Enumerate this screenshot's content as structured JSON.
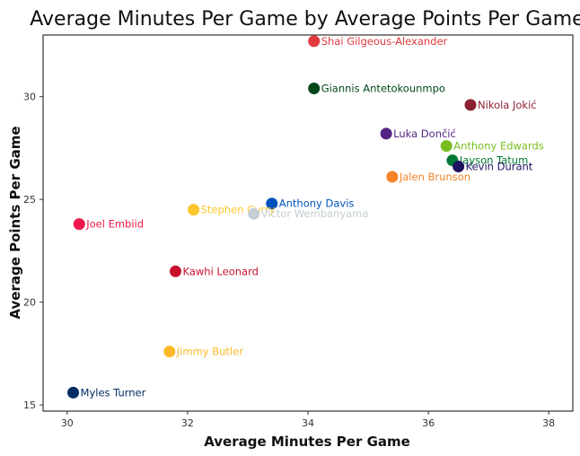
{
  "chart_data": {
    "type": "scatter",
    "title": "Average Minutes Per Game by Average Points Per Game",
    "xlabel": "Average Minutes Per Game",
    "ylabel": "Average Points Per Game",
    "xlim": [
      29.6,
      38.4
    ],
    "ylim": [
      14.7,
      33.0
    ],
    "xticks": [
      30,
      32,
      34,
      36,
      38
    ],
    "yticks": [
      15,
      20,
      25,
      30
    ],
    "grid": false,
    "legend": "none",
    "points": [
      {
        "name": "Shai Gilgeous-Alexander",
        "x": 34.1,
        "y": 32.7,
        "color": "#E03A3E"
      },
      {
        "name": "Giannis Antetokounmpo",
        "x": 34.1,
        "y": 30.4,
        "color": "#00471B"
      },
      {
        "name": "Nikola Jokić",
        "x": 36.7,
        "y": 29.6,
        "color": "#8B2131"
      },
      {
        "name": "Luka Dončić",
        "x": 35.3,
        "y": 28.2,
        "color": "#552583"
      },
      {
        "name": "Anthony Edwards",
        "x": 36.3,
        "y": 27.6,
        "color": "#78BE20"
      },
      {
        "name": "Jayson Tatum",
        "x": 36.4,
        "y": 26.9,
        "color": "#007A33"
      },
      {
        "name": "Kevin Durant",
        "x": 36.5,
        "y": 26.6,
        "color": "#1D1160"
      },
      {
        "name": "Jalen Brunson",
        "x": 35.4,
        "y": 26.1,
        "color": "#F58426"
      },
      {
        "name": "Anthony Davis",
        "x": 33.4,
        "y": 24.8,
        "color": "#0053BC"
      },
      {
        "name": "Stephen Curry",
        "x": 32.1,
        "y": 24.5,
        "color": "#FFC72C"
      },
      {
        "name": "Victor Wembanyama",
        "x": 33.1,
        "y": 24.3,
        "color": "#C4CED4"
      },
      {
        "name": "Joel Embiid",
        "x": 30.2,
        "y": 23.8,
        "color": "#ED174C"
      },
      {
        "name": "Kawhi Leonard",
        "x": 31.8,
        "y": 21.5,
        "color": "#C8102E"
      },
      {
        "name": "Jimmy Butler",
        "x": 31.7,
        "y": 17.6,
        "color": "#FDB927"
      },
      {
        "name": "Myles Turner",
        "x": 30.1,
        "y": 15.6,
        "color": "#002D62"
      }
    ]
  }
}
